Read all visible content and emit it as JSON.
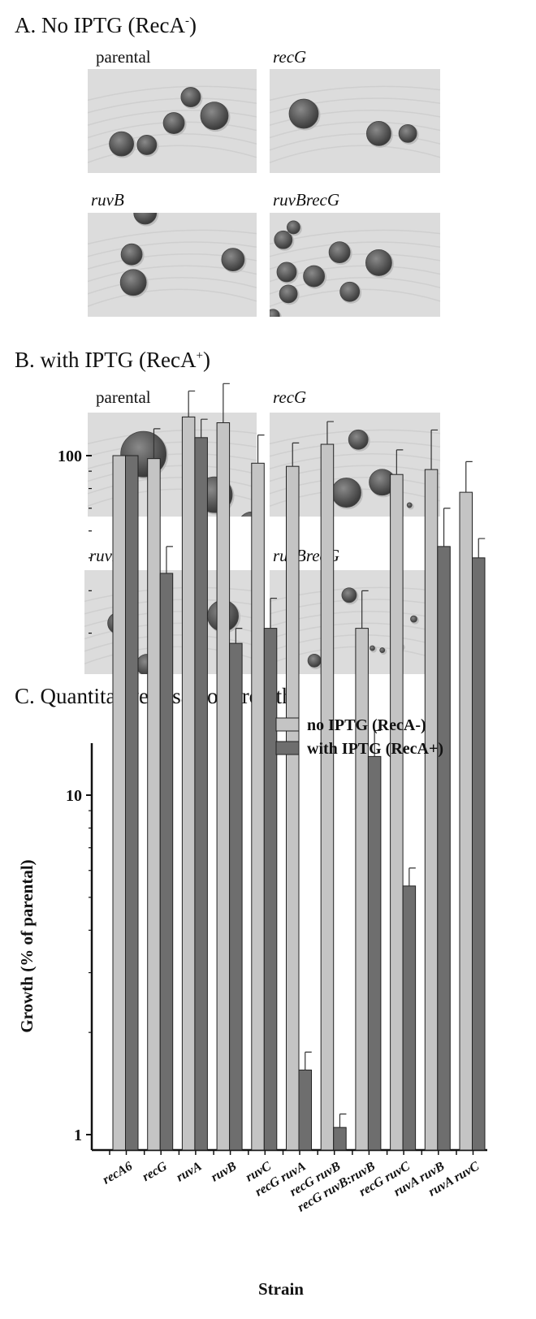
{
  "section_a": {
    "title": "A. No IPTG (RecA",
    "superscript": "-",
    "title_end": ")",
    "panels": [
      {
        "label": "parental",
        "italic": false
      },
      {
        "label": "recG",
        "italic": true
      },
      {
        "label": "ruvB",
        "italic": true
      },
      {
        "label": "ruvBrecG",
        "italic": true
      }
    ]
  },
  "section_b": {
    "title": "B. with IPTG (RecA",
    "superscript": "+",
    "title_end": ")",
    "panels": [
      {
        "label": "parental",
        "italic": false
      },
      {
        "label": "recG",
        "italic": true
      },
      {
        "label": "ruvB",
        "italic": true
      },
      {
        "label": "ruvBrecG",
        "italic": true
      }
    ]
  },
  "section_c": {
    "title": "C. Quantitative assay of growth"
  },
  "colors": {
    "no_iptg": "#c4c4c4",
    "with_iptg": "#6e6e6e",
    "plate": "#dcdcdc",
    "colony": "#5a5a5a"
  },
  "chart_data": {
    "type": "bar",
    "title": "C. Quantitative assay of growth",
    "xlabel": "Strain",
    "ylabel": "Growth (% of parental)",
    "yscale": "log",
    "ylim": [
      1,
      200
    ],
    "yticks": [
      "1",
      "10",
      "100"
    ],
    "legend_position": "top-right",
    "categories": [
      "recA6",
      "recG",
      "ruvA",
      "ruvB",
      "ruvC",
      "recG ruvA",
      "recG ruvB",
      "recG ruvB:ruvB",
      "recG ruvC",
      "ruvA ruvB",
      "ruvA ruvC"
    ],
    "series": [
      {
        "name": "no IPTG (RecA-)",
        "values": [
          100,
          98,
          130,
          125,
          95,
          93,
          108,
          31,
          88,
          91,
          78
        ],
        "errors": [
          0,
          22,
          25,
          38,
          20,
          16,
          18,
          9,
          16,
          28,
          18
        ]
      },
      {
        "name": "with IPTG (RecA+)",
        "values": [
          100,
          45,
          113,
          28,
          31,
          1.55,
          1.05,
          13,
          5.4,
          54,
          50
        ],
        "errors": [
          0,
          9,
          15,
          3,
          7,
          0.2,
          0.1,
          2.5,
          0.7,
          16,
          7
        ]
      }
    ]
  }
}
